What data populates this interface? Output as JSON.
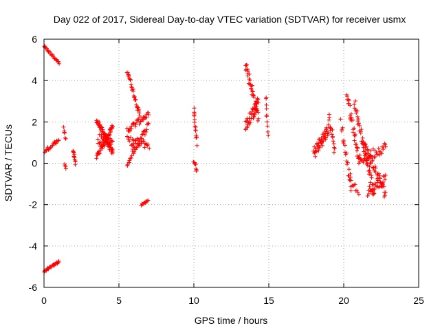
{
  "chart_data": {
    "type": "scatter",
    "title": "Day 022 of 2017, Sidereal Day-to-day VTEC variation (SDTVAR) for receiver usmx",
    "xlabel": "GPS time / hours",
    "ylabel": "SDTVAR / TECUs",
    "xlim": [
      0,
      25
    ],
    "ylim": [
      -6,
      6
    ],
    "xticks": [
      0,
      5,
      10,
      15,
      20,
      25
    ],
    "yticks": [
      -6,
      -4,
      -2,
      0,
      2,
      4,
      6
    ],
    "grid": true,
    "marker": "+",
    "marker_color": "#ff0000",
    "series": [
      {
        "name": "SDTVAR",
        "segments": [
          {
            "x0": 0.0,
            "x1": 1.0,
            "y0": 5.65,
            "y1": 4.85,
            "n": 24,
            "spread": 0.05
          },
          {
            "x0": 0.05,
            "x1": 1.0,
            "y0": 0.6,
            "y1": 1.1,
            "n": 20,
            "spread": 0.08
          },
          {
            "x0": 0.0,
            "x1": 1.0,
            "y0": -5.25,
            "y1": -4.75,
            "n": 26,
            "spread": 0.05
          },
          {
            "x0": 0.7,
            "x1": 0.75,
            "y0": 1.05,
            "y1": 1.0,
            "n": 4,
            "spread": 0.05
          },
          {
            "x0": 1.3,
            "x1": 1.45,
            "y0": 1.7,
            "y1": 1.2,
            "n": 6,
            "spread": 0.08
          },
          {
            "x0": 1.4,
            "x1": 1.45,
            "y0": 0.0,
            "y1": -0.25,
            "n": 4,
            "spread": 0.05
          },
          {
            "x0": 1.95,
            "x1": 2.1,
            "y0": 0.6,
            "y1": 0.0,
            "n": 12,
            "spread": 0.1
          },
          {
            "x0": 3.5,
            "x1": 4.6,
            "y0": 2.1,
            "y1": 0.5,
            "n": 50,
            "spread": 0.15
          },
          {
            "x0": 3.5,
            "x1": 4.6,
            "y0": 0.3,
            "y1": 1.8,
            "n": 50,
            "spread": 0.15
          },
          {
            "x0": 3.6,
            "x1": 4.6,
            "y0": 1.2,
            "y1": 0.9,
            "n": 30,
            "spread": 0.25
          },
          {
            "x0": 5.55,
            "x1": 6.4,
            "y0": 4.5,
            "y1": 2.3,
            "n": 32,
            "spread": 0.12
          },
          {
            "x0": 5.55,
            "x1": 7.0,
            "y0": 1.6,
            "y1": 2.4,
            "n": 34,
            "spread": 0.15
          },
          {
            "x0": 5.55,
            "x1": 7.0,
            "y0": 1.1,
            "y1": 0.9,
            "n": 30,
            "spread": 0.2
          },
          {
            "x0": 5.55,
            "x1": 6.0,
            "y0": -0.2,
            "y1": 0.8,
            "n": 12,
            "spread": 0.12
          },
          {
            "x0": 6.0,
            "x1": 7.0,
            "y0": 0.6,
            "y1": 1.9,
            "n": 22,
            "spread": 0.15
          },
          {
            "x0": 6.5,
            "x1": 6.95,
            "y0": -2.0,
            "y1": -1.8,
            "n": 10,
            "spread": 0.05
          },
          {
            "x0": 10.0,
            "x1": 10.2,
            "y0": 2.6,
            "y1": 1.0,
            "n": 16,
            "spread": 0.2
          },
          {
            "x0": 10.0,
            "x1": 10.2,
            "y0": 0.1,
            "y1": -0.3,
            "n": 8,
            "spread": 0.1
          },
          {
            "x0": 13.45,
            "x1": 14.3,
            "y0": 4.9,
            "y1": 2.2,
            "n": 40,
            "spread": 0.3
          },
          {
            "x0": 13.45,
            "x1": 14.3,
            "y0": 1.8,
            "y1": 2.9,
            "n": 40,
            "spread": 0.3
          },
          {
            "x0": 14.8,
            "x1": 14.95,
            "y0": 3.3,
            "y1": 1.3,
            "n": 10,
            "spread": 0.15
          },
          {
            "x0": 18.0,
            "x1": 19.0,
            "y0": 0.5,
            "y1": 1.6,
            "n": 50,
            "spread": 0.3
          },
          {
            "x0": 19.0,
            "x1": 19.4,
            "y0": 2.3,
            "y1": 0.6,
            "n": 16,
            "spread": 0.25
          },
          {
            "x0": 19.8,
            "x1": 20.5,
            "y0": 2.0,
            "y1": -1.2,
            "n": 20,
            "spread": 0.3
          },
          {
            "x0": 20.2,
            "x1": 21.0,
            "y0": 3.4,
            "y1": 0.3,
            "n": 30,
            "spread": 0.3
          },
          {
            "x0": 20.3,
            "x1": 21.0,
            "y0": -0.5,
            "y1": -1.6,
            "n": 12,
            "spread": 0.2
          },
          {
            "x0": 20.7,
            "x1": 22.0,
            "y0": 3.0,
            "y1": -1.4,
            "n": 45,
            "spread": 0.25
          },
          {
            "x0": 20.9,
            "x1": 22.8,
            "y0": 0.1,
            "y1": 0.8,
            "n": 40,
            "spread": 0.25
          },
          {
            "x0": 21.3,
            "x1": 22.8,
            "y0": 1.0,
            "y1": -1.5,
            "n": 45,
            "spread": 0.25
          },
          {
            "x0": 21.6,
            "x1": 22.8,
            "y0": -1.4,
            "y1": -0.7,
            "n": 30,
            "spread": 0.25
          }
        ]
      }
    ]
  }
}
